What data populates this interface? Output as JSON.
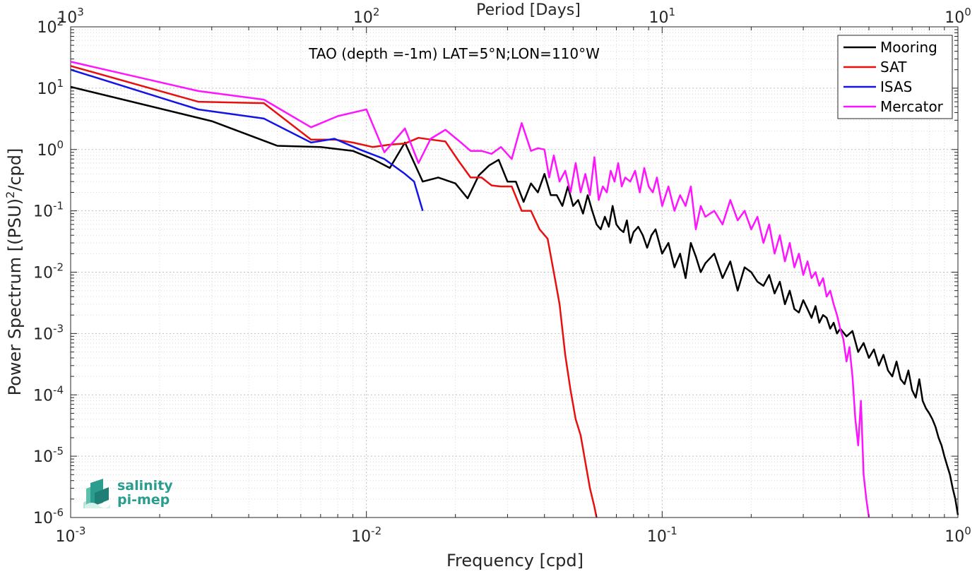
{
  "chart_data": {
    "type": "line",
    "title": "TAO (depth =-1m) LAT=5°N;LON=110°W",
    "xlabel": "Frequency [cpd]",
    "ylabel_prefix": "Power Spectrum [(PSU)",
    "ylabel_sup": "2",
    "ylabel_suffix": "/cpd]",
    "top_xlabel": "Period [Days]",
    "xscale": "log",
    "yscale": "log",
    "xlim": [
      0.001,
      1
    ],
    "ylim": [
      1e-06,
      100
    ],
    "grid": true,
    "minor_grid": true,
    "legend_position": "top-right",
    "x_ticks": [
      {
        "value": 0.001,
        "base": "10",
        "exp": "-3"
      },
      {
        "value": 0.01,
        "base": "10",
        "exp": "-2"
      },
      {
        "value": 0.1,
        "base": "10",
        "exp": "-1"
      },
      {
        "value": 1,
        "base": "10",
        "exp": "0"
      }
    ],
    "y_ticks": [
      {
        "value": 100,
        "base": "10",
        "exp": "2"
      },
      {
        "value": 10,
        "base": "10",
        "exp": "1"
      },
      {
        "value": 1,
        "base": "10",
        "exp": "0"
      },
      {
        "value": 0.1,
        "base": "10",
        "exp": "-1"
      },
      {
        "value": 0.01,
        "base": "10",
        "exp": "-2"
      },
      {
        "value": 0.001,
        "base": "10",
        "exp": "-3"
      },
      {
        "value": 0.0001,
        "base": "10",
        "exp": "-4"
      },
      {
        "value": 1e-05,
        "base": "10",
        "exp": "-5"
      },
      {
        "value": 1e-06,
        "base": "10",
        "exp": "-6"
      }
    ],
    "top_x_ticks": [
      {
        "value": 0.001,
        "base": "10",
        "exp": "3"
      },
      {
        "value": 0.01,
        "base": "10",
        "exp": "2"
      },
      {
        "value": 0.1,
        "base": "10",
        "exp": "1"
      },
      {
        "value": 1,
        "base": "10",
        "exp": "0"
      }
    ],
    "series": [
      {
        "name": "Mooring",
        "color": "#000000",
        "x": [
          0.001,
          0.003,
          0.005,
          0.007,
          0.009,
          0.0105,
          0.012,
          0.0135,
          0.0155,
          0.0175,
          0.02,
          0.022,
          0.024,
          0.026,
          0.028,
          0.03,
          0.032,
          0.034,
          0.036,
          0.038,
          0.04,
          0.042,
          0.044,
          0.046,
          0.048,
          0.05,
          0.052,
          0.054,
          0.056,
          0.058,
          0.06,
          0.062,
          0.064,
          0.066,
          0.068,
          0.07,
          0.072,
          0.074,
          0.076,
          0.078,
          0.08,
          0.083,
          0.086,
          0.089,
          0.092,
          0.095,
          0.1,
          0.105,
          0.11,
          0.115,
          0.12,
          0.125,
          0.13,
          0.135,
          0.14,
          0.15,
          0.16,
          0.17,
          0.18,
          0.19,
          0.2,
          0.21,
          0.22,
          0.23,
          0.24,
          0.25,
          0.26,
          0.27,
          0.28,
          0.29,
          0.3,
          0.31,
          0.32,
          0.33,
          0.34,
          0.35,
          0.36,
          0.37,
          0.38,
          0.39,
          0.4,
          0.42,
          0.44,
          0.46,
          0.48,
          0.5,
          0.52,
          0.54,
          0.56,
          0.58,
          0.6,
          0.62,
          0.64,
          0.66,
          0.68,
          0.7,
          0.72,
          0.74,
          0.76,
          0.78,
          0.8,
          0.82,
          0.84,
          0.86,
          0.88,
          0.9,
          0.92,
          0.94,
          0.96,
          0.98,
          1.0
        ],
        "values": [
          10.5,
          2.9,
          1.15,
          1.1,
          0.95,
          0.7,
          0.5,
          1.3,
          0.3,
          0.35,
          0.28,
          0.16,
          0.38,
          0.55,
          0.68,
          0.3,
          0.3,
          0.14,
          0.28,
          0.2,
          0.4,
          0.18,
          0.18,
          0.12,
          0.25,
          0.12,
          0.15,
          0.09,
          0.18,
          0.1,
          0.06,
          0.05,
          0.08,
          0.055,
          0.12,
          0.06,
          0.05,
          0.045,
          0.07,
          0.03,
          0.045,
          0.055,
          0.04,
          0.025,
          0.04,
          0.05,
          0.02,
          0.03,
          0.012,
          0.02,
          0.008,
          0.03,
          0.018,
          0.01,
          0.014,
          0.02,
          0.008,
          0.015,
          0.005,
          0.012,
          0.01,
          0.007,
          0.006,
          0.009,
          0.0045,
          0.007,
          0.003,
          0.005,
          0.0025,
          0.0022,
          0.0035,
          0.0025,
          0.0018,
          0.0028,
          0.0015,
          0.002,
          0.0018,
          0.0012,
          0.0015,
          0.001,
          0.0012,
          0.0009,
          0.0011,
          0.0005,
          0.0007,
          0.0004,
          0.00055,
          0.0003,
          0.00045,
          0.00025,
          0.0002,
          0.00035,
          0.00018,
          0.00015,
          0.00025,
          0.00012,
          9e-05,
          0.00018,
          8e-05,
          6e-05,
          5e-05,
          4e-05,
          3e-05,
          2e-05,
          1.5e-05,
          1e-05,
          7e-06,
          5e-06,
          3e-06,
          2e-06,
          1.1e-06
        ]
      },
      {
        "name": "SAT",
        "color": "#e8100e",
        "x": [
          0.001,
          0.0027,
          0.0045,
          0.0065,
          0.0078,
          0.009,
          0.0105,
          0.012,
          0.0135,
          0.015,
          0.0165,
          0.0185,
          0.0205,
          0.0225,
          0.0245,
          0.0265,
          0.0285,
          0.031,
          0.0335,
          0.036,
          0.0385,
          0.041,
          0.043,
          0.045,
          0.047,
          0.049,
          0.051,
          0.053,
          0.055,
          0.057,
          0.059,
          0.06
        ],
        "values": [
          23,
          6,
          5.7,
          1.45,
          1.45,
          1.3,
          1.1,
          1.2,
          1.25,
          1.55,
          1.45,
          1.35,
          0.65,
          0.35,
          0.35,
          0.26,
          0.25,
          0.25,
          0.1,
          0.1,
          0.05,
          0.035,
          0.01,
          0.003,
          0.00045,
          0.00012,
          4e-05,
          2.2e-05,
          8e-06,
          3e-06,
          1.5e-06,
          1e-06
        ]
      },
      {
        "name": "ISAS",
        "color": "#1414e6",
        "x": [
          0.001,
          0.0027,
          0.0045,
          0.0065,
          0.0078,
          0.0095,
          0.0115,
          0.0135,
          0.0145,
          0.0155
        ],
        "values": [
          20,
          4.5,
          3.2,
          1.3,
          1.5,
          1.0,
          0.7,
          0.4,
          0.3,
          0.1
        ]
      },
      {
        "name": "Mercator",
        "color": "#ff14ff",
        "x": [
          0.001,
          0.0027,
          0.0045,
          0.0065,
          0.008,
          0.01,
          0.0115,
          0.0135,
          0.015,
          0.0165,
          0.0185,
          0.0205,
          0.0225,
          0.0245,
          0.0265,
          0.0285,
          0.031,
          0.0335,
          0.036,
          0.038,
          0.04,
          0.0415,
          0.043,
          0.045,
          0.047,
          0.049,
          0.051,
          0.053,
          0.055,
          0.057,
          0.059,
          0.061,
          0.063,
          0.065,
          0.067,
          0.069,
          0.071,
          0.073,
          0.075,
          0.078,
          0.081,
          0.084,
          0.087,
          0.09,
          0.093,
          0.096,
          0.1,
          0.105,
          0.11,
          0.115,
          0.12,
          0.125,
          0.13,
          0.135,
          0.14,
          0.15,
          0.16,
          0.17,
          0.18,
          0.19,
          0.2,
          0.21,
          0.22,
          0.23,
          0.24,
          0.25,
          0.26,
          0.27,
          0.28,
          0.29,
          0.3,
          0.31,
          0.32,
          0.33,
          0.34,
          0.35,
          0.36,
          0.37,
          0.38,
          0.39,
          0.4,
          0.41,
          0.42,
          0.43,
          0.44,
          0.45,
          0.46,
          0.47,
          0.48,
          0.49,
          0.5
        ],
        "values": [
          27,
          9,
          6.5,
          2.3,
          3.5,
          4.5,
          0.9,
          2.2,
          0.6,
          1.5,
          2.1,
          1.4,
          0.95,
          0.95,
          0.85,
          1.1,
          0.7,
          2.7,
          0.95,
          1.05,
          1.0,
          0.35,
          0.8,
          0.3,
          0.45,
          0.2,
          0.6,
          0.2,
          0.4,
          0.18,
          0.75,
          0.15,
          0.25,
          0.2,
          0.45,
          0.3,
          0.6,
          0.25,
          0.35,
          0.3,
          0.45,
          0.2,
          0.5,
          0.25,
          0.2,
          0.35,
          0.12,
          0.25,
          0.1,
          0.18,
          0.12,
          0.25,
          0.05,
          0.12,
          0.08,
          0.1,
          0.06,
          0.15,
          0.07,
          0.1,
          0.05,
          0.08,
          0.03,
          0.06,
          0.02,
          0.04,
          0.015,
          0.03,
          0.012,
          0.02,
          0.009,
          0.015,
          0.008,
          0.01,
          0.006,
          0.008,
          0.004,
          0.005,
          0.003,
          0.002,
          0.0012,
          0.0008,
          0.00035,
          0.0006,
          0.0002,
          4e-05,
          1.5e-05,
          8e-05,
          5e-06,
          2e-06,
          1e-06
        ]
      }
    ]
  },
  "logo": {
    "line1": "salinity",
    "line2": "pi-mep"
  }
}
